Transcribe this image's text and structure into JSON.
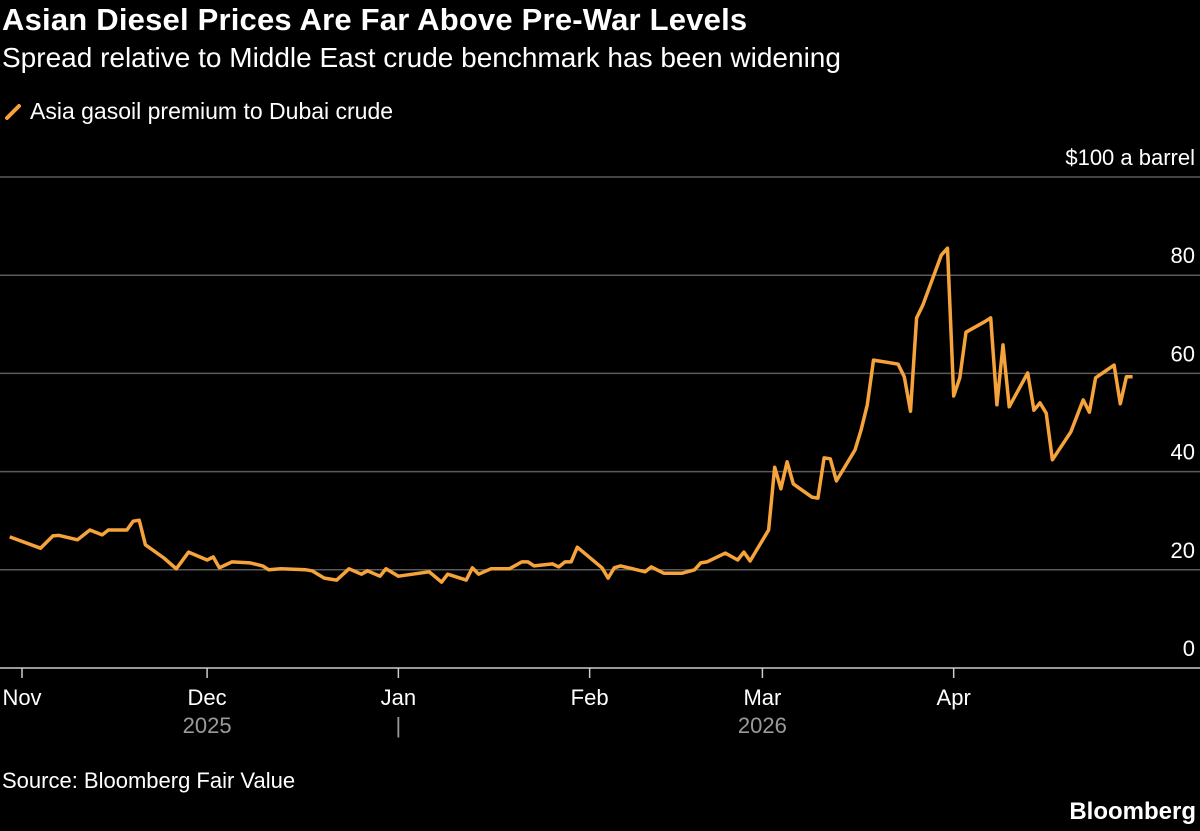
{
  "header": {
    "title": "Asian Diesel Prices Are Far Above Pre-War Levels",
    "subtitle": "Spread relative to Middle East crude benchmark has been widening"
  },
  "footer": {
    "source": "Source: Bloomberg Fair Value",
    "logo": "Bloomberg"
  },
  "colors": {
    "line": "#f5a33a",
    "grid": "#5a5a5a",
    "axis": "#cccccc",
    "background": "#000000"
  },
  "chart_data": {
    "type": "line",
    "title": "Asian Diesel Prices Are Far Above Pre-War Levels",
    "ylabel": "$100 a barrel",
    "ylim": [
      0,
      100
    ],
    "yticks": [
      {
        "value": 100,
        "label": "$100 a barrel"
      },
      {
        "value": 80,
        "label": "80"
      },
      {
        "value": 60,
        "label": "60"
      },
      {
        "value": 40,
        "label": "40"
      },
      {
        "value": 20,
        "label": "20"
      },
      {
        "value": 0,
        "label": "0"
      }
    ],
    "xticks": [
      {
        "date": "2025-11-01",
        "label": "Nov"
      },
      {
        "date": "2025-12-01",
        "label": "Dec"
      },
      {
        "date": "2026-01-01",
        "label": "Jan"
      },
      {
        "date": "2026-02-01",
        "label": "Feb"
      },
      {
        "date": "2026-03-01",
        "label": "Mar"
      },
      {
        "date": "2026-04-01",
        "label": "Apr"
      }
    ],
    "year_labels": [
      {
        "date": "2025-12-01",
        "label": "2025"
      },
      {
        "date": "2026-01-01",
        "label": "|"
      },
      {
        "date": "2026-03-01",
        "label": "2026"
      }
    ],
    "grid": true,
    "legend": "top-left",
    "series": [
      {
        "name": "Asia gasoil premium to Dubai crude",
        "points": [
          [
            "2025-10-30",
            26.7
          ],
          [
            "2025-11-04",
            24.4
          ],
          [
            "2025-11-06",
            26.9
          ],
          [
            "2025-11-07",
            27.0
          ],
          [
            "2025-11-10",
            26.1
          ],
          [
            "2025-11-12",
            28.1
          ],
          [
            "2025-11-14",
            27.1
          ],
          [
            "2025-11-15",
            28.1
          ],
          [
            "2025-11-18",
            28.1
          ],
          [
            "2025-11-19",
            29.9
          ],
          [
            "2025-11-20",
            30.1
          ],
          [
            "2025-11-21",
            25.1
          ],
          [
            "2025-11-24",
            22.4
          ],
          [
            "2025-11-26",
            20.2
          ],
          [
            "2025-11-28",
            23.6
          ],
          [
            "2025-12-01",
            22.0
          ],
          [
            "2025-12-02",
            22.6
          ],
          [
            "2025-12-03",
            20.4
          ],
          [
            "2025-12-05",
            21.6
          ],
          [
            "2025-12-08",
            21.4
          ],
          [
            "2025-12-10",
            20.8
          ],
          [
            "2025-12-11",
            20.0
          ],
          [
            "2025-12-13",
            20.2
          ],
          [
            "2025-12-17",
            20.0
          ],
          [
            "2025-12-18",
            19.8
          ],
          [
            "2025-12-20",
            18.3
          ],
          [
            "2025-12-22",
            17.9
          ],
          [
            "2025-12-24",
            20.2
          ],
          [
            "2025-12-26",
            19.1
          ],
          [
            "2025-12-27",
            19.8
          ],
          [
            "2025-12-29",
            18.7
          ],
          [
            "2025-12-30",
            20.2
          ],
          [
            "2026-01-01",
            18.7
          ],
          [
            "2026-01-06",
            19.6
          ],
          [
            "2026-01-08",
            17.5
          ],
          [
            "2026-01-09",
            19.1
          ],
          [
            "2026-01-12",
            17.9
          ],
          [
            "2026-01-13",
            20.4
          ],
          [
            "2026-01-14",
            19.1
          ],
          [
            "2026-01-16",
            20.2
          ],
          [
            "2026-01-19",
            20.2
          ],
          [
            "2026-01-21",
            21.6
          ],
          [
            "2026-01-22",
            21.6
          ],
          [
            "2026-01-23",
            20.8
          ],
          [
            "2026-01-26",
            21.2
          ],
          [
            "2026-01-27",
            20.6
          ],
          [
            "2026-01-28",
            21.6
          ],
          [
            "2026-01-29",
            21.6
          ],
          [
            "2026-01-30",
            24.6
          ],
          [
            "2026-02-03",
            20.4
          ],
          [
            "2026-02-04",
            18.3
          ],
          [
            "2026-02-05",
            20.4
          ],
          [
            "2026-02-06",
            20.8
          ],
          [
            "2026-02-10",
            19.6
          ],
          [
            "2026-02-11",
            20.6
          ],
          [
            "2026-02-13",
            19.3
          ],
          [
            "2026-02-16",
            19.3
          ],
          [
            "2026-02-18",
            20.0
          ],
          [
            "2026-02-19",
            21.4
          ],
          [
            "2026-02-20",
            21.6
          ],
          [
            "2026-02-23",
            23.4
          ],
          [
            "2026-02-25",
            22.0
          ],
          [
            "2026-02-26",
            23.6
          ],
          [
            "2026-02-27",
            21.8
          ],
          [
            "2026-03-02",
            28.1
          ],
          [
            "2026-03-03",
            40.9
          ],
          [
            "2026-03-04",
            36.5
          ],
          [
            "2026-03-05",
            42.0
          ],
          [
            "2026-03-06",
            37.5
          ],
          [
            "2026-03-09",
            34.8
          ],
          [
            "2026-03-10",
            34.6
          ],
          [
            "2026-03-11",
            42.8
          ],
          [
            "2026-03-12",
            42.6
          ],
          [
            "2026-03-13",
            38.1
          ],
          [
            "2026-03-16",
            44.4
          ],
          [
            "2026-03-17",
            48.5
          ],
          [
            "2026-03-18",
            53.6
          ],
          [
            "2026-03-19",
            62.7
          ],
          [
            "2026-03-20",
            62.5
          ],
          [
            "2026-03-23",
            61.9
          ],
          [
            "2026-03-24",
            59.3
          ],
          [
            "2026-03-25",
            52.3
          ],
          [
            "2026-03-26",
            71.3
          ],
          [
            "2026-03-27",
            73.9
          ],
          [
            "2026-03-30",
            84.1
          ],
          [
            "2026-03-31",
            85.5
          ],
          [
            "2026-04-01",
            55.4
          ],
          [
            "2026-04-02",
            59.1
          ],
          [
            "2026-04-03",
            68.4
          ],
          [
            "2026-04-06",
            70.5
          ],
          [
            "2026-04-07",
            71.3
          ],
          [
            "2026-04-08",
            53.6
          ],
          [
            "2026-04-09",
            65.8
          ],
          [
            "2026-04-10",
            53.2
          ],
          [
            "2026-04-13",
            60.1
          ],
          [
            "2026-04-14",
            52.5
          ],
          [
            "2026-04-15",
            54.0
          ],
          [
            "2026-04-16",
            51.9
          ],
          [
            "2026-04-17",
            42.4
          ],
          [
            "2026-04-20",
            48.1
          ],
          [
            "2026-04-22",
            54.6
          ],
          [
            "2026-04-23",
            52.1
          ],
          [
            "2026-04-24",
            59.1
          ],
          [
            "2026-04-27",
            61.7
          ],
          [
            "2026-04-28",
            53.8
          ],
          [
            "2026-04-29",
            59.3
          ],
          [
            "2026-04-30",
            59.3
          ]
        ]
      }
    ]
  }
}
